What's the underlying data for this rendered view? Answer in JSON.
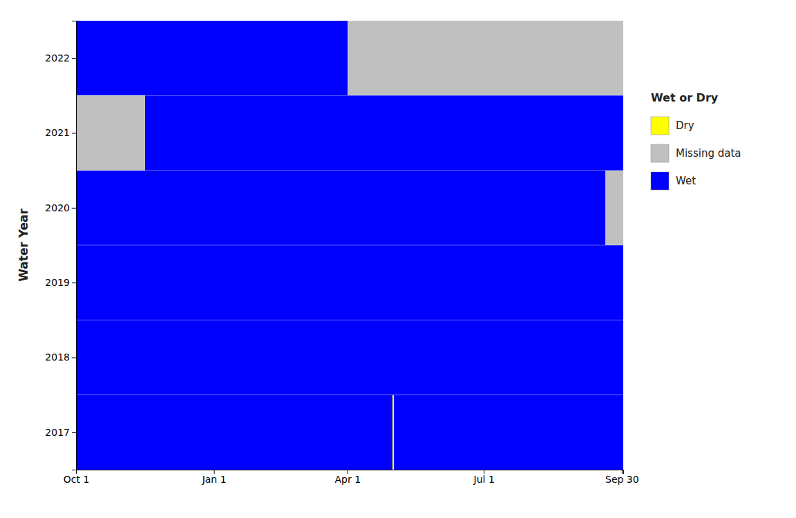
{
  "chart_data": {
    "type": "timeline",
    "ylabel": "Water Year",
    "legend_title": "Wet or Dry",
    "legend": "right",
    "xlim": [
      0,
      365
    ],
    "xticks": [
      {
        "value": 0,
        "label": "Oct 1"
      },
      {
        "value": 92,
        "label": "Jan 1"
      },
      {
        "value": 181,
        "label": "Apr 1"
      },
      {
        "value": 272,
        "label": "Jul 1"
      },
      {
        "value": 364,
        "label": "Sep 30"
      }
    ],
    "ylim": [
      2016.5,
      2022.5
    ],
    "yticks": [
      2017,
      2018,
      2019,
      2020,
      2021,
      2022
    ],
    "gridlines": [
      2017.5,
      2018.5,
      2019.5,
      2020.5,
      2021.5
    ],
    "series": [
      {
        "name": "Dry",
        "color": "#FFFF00",
        "y": [
          2017
        ],
        "start": [
          211
        ],
        "end": [
          212
        ]
      },
      {
        "name": "Missing data",
        "color": "#C0C0C0",
        "y": [
          2021,
          2020,
          2022
        ],
        "start": [
          0,
          353,
          181
        ],
        "end": [
          46,
          365,
          365
        ]
      },
      {
        "name": "Wet",
        "color": "#0000FF",
        "y": [
          2017,
          2017,
          2018,
          2019,
          2020,
          2021,
          2022
        ],
        "start": [
          0,
          212,
          0,
          0,
          0,
          46,
          0
        ],
        "end": [
          211,
          365,
          365,
          365,
          353,
          365,
          181
        ]
      }
    ]
  }
}
